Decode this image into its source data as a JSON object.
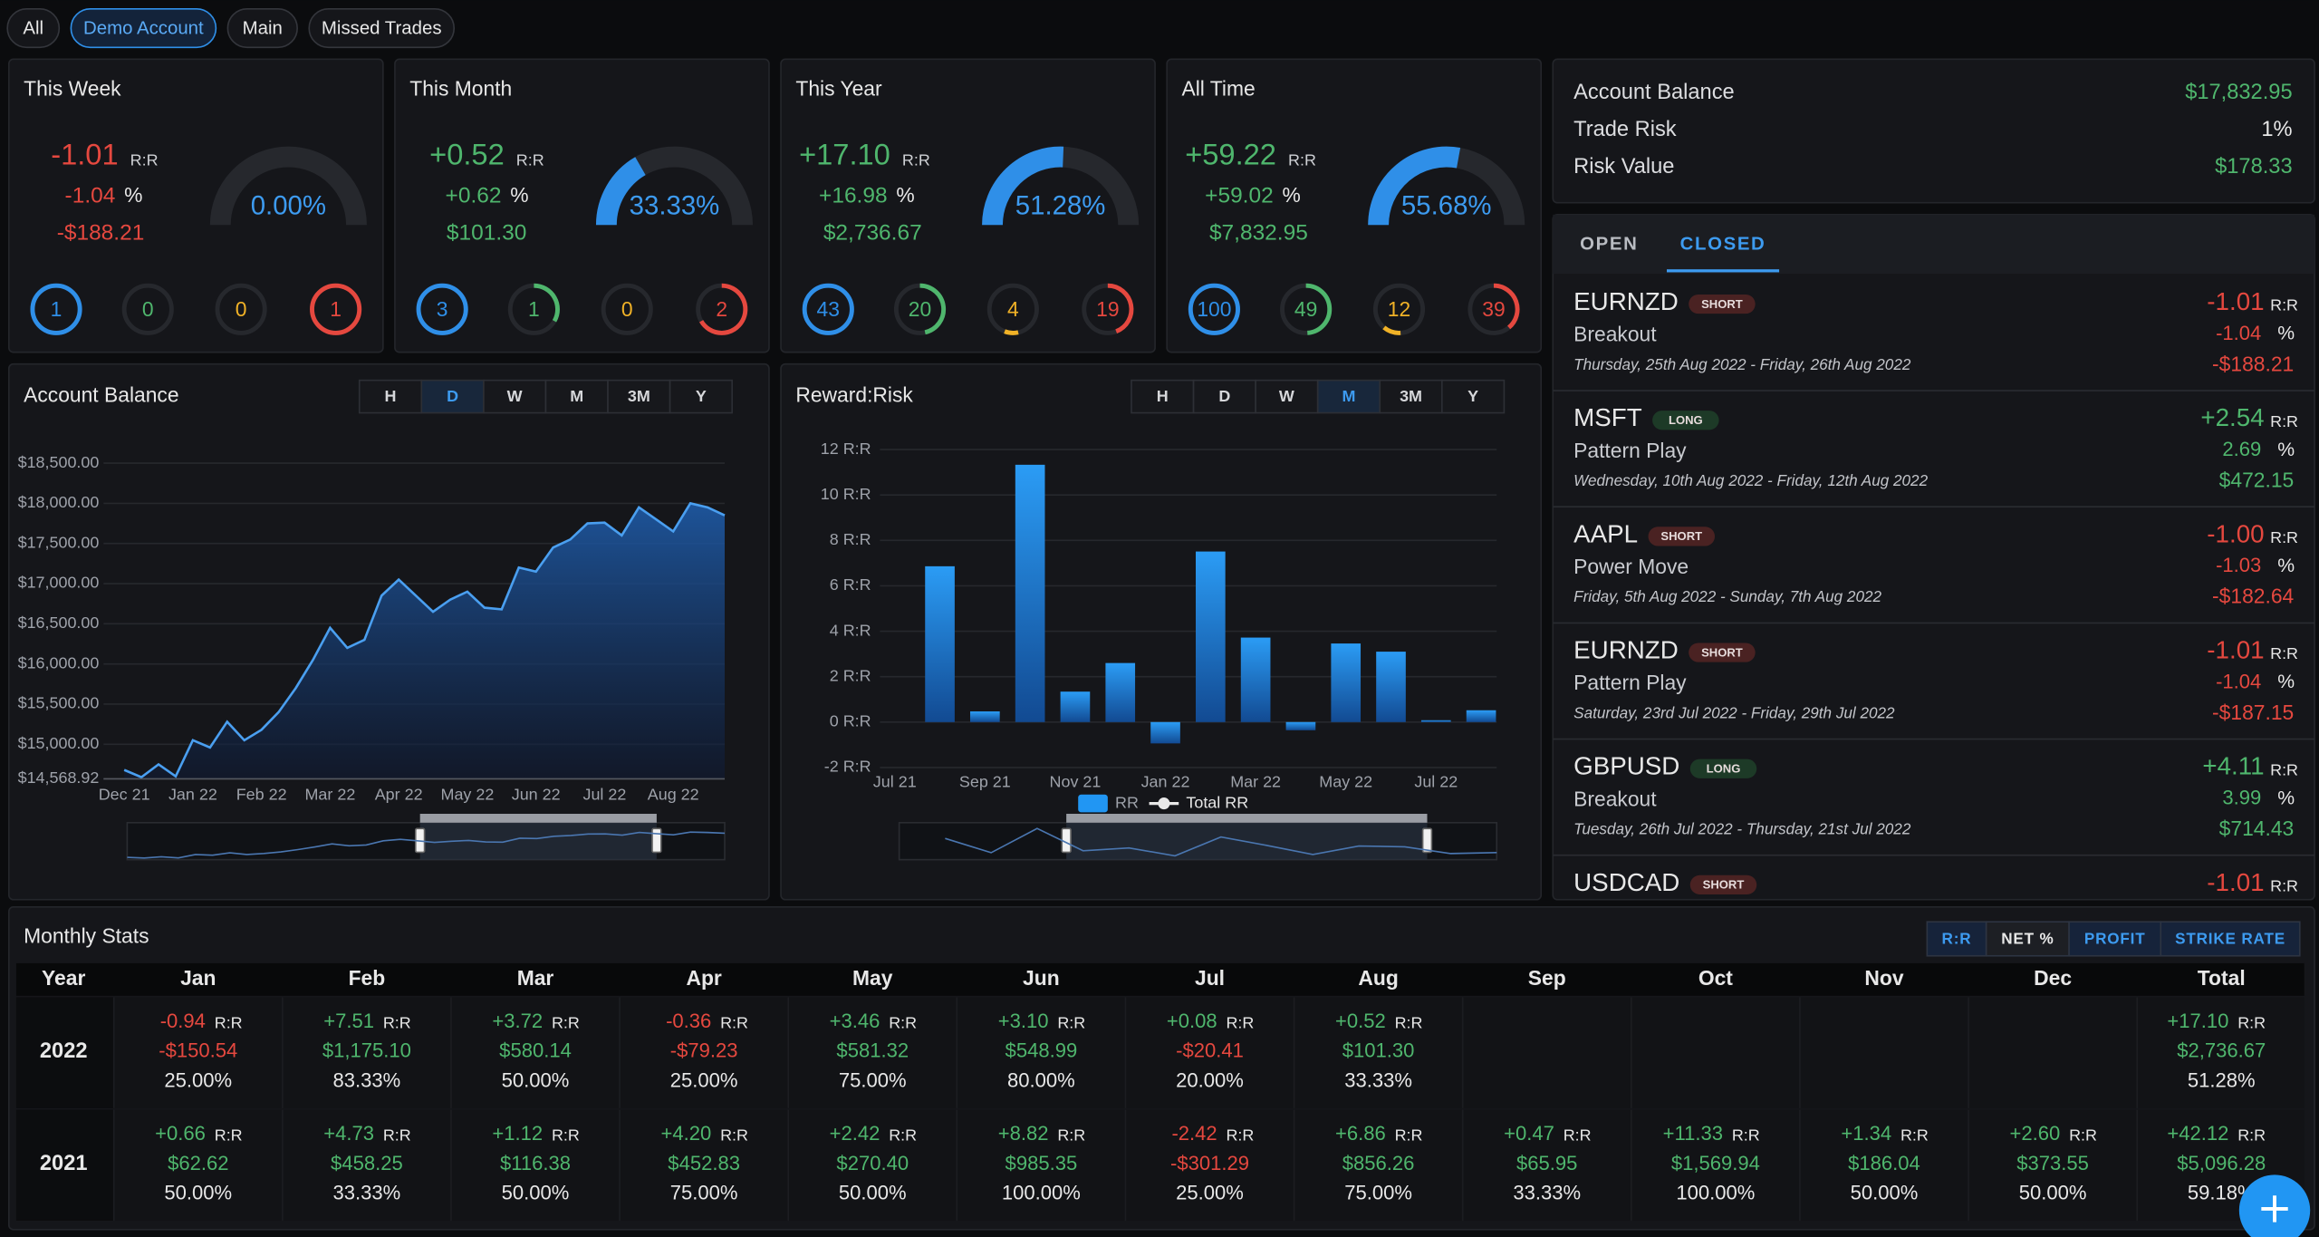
{
  "filters": [
    {
      "label": "All",
      "selected": false
    },
    {
      "label": "Demo Account",
      "selected": true
    },
    {
      "label": "Main",
      "selected": false
    },
    {
      "label": "Missed Trades",
      "selected": false
    }
  ],
  "units": {
    "rr": "R:R",
    "pct": "%"
  },
  "stat_cards": [
    {
      "title": "This Week",
      "rr": "-1.01",
      "pct": "-1.04",
      "profit": "-$188.21",
      "gauge": {
        "value": 0,
        "label": "0.00%"
      },
      "counts": {
        "total": 1,
        "wins": 0,
        "breakeven": 0,
        "losses": 1
      }
    },
    {
      "title": "This Month",
      "rr": "+0.52",
      "pct": "+0.62",
      "profit": "$101.30",
      "gauge": {
        "value": 33.33,
        "label": "33.33%"
      },
      "counts": {
        "total": 3,
        "wins": 1,
        "breakeven": 0,
        "losses": 2
      }
    },
    {
      "title": "This Year",
      "rr": "+17.10",
      "pct": "+16.98",
      "profit": "$2,736.67",
      "gauge": {
        "value": 51.28,
        "label": "51.28%"
      },
      "counts": {
        "total": 43,
        "wins": 20,
        "breakeven": 4,
        "losses": 19
      }
    },
    {
      "title": "All Time",
      "rr": "+59.22",
      "pct": "+59.02",
      "profit": "$7,832.95",
      "gauge": {
        "value": 55.68,
        "label": "55.68%"
      },
      "counts": {
        "total": 100,
        "wins": 49,
        "breakeven": 12,
        "losses": 39
      }
    }
  ],
  "account": [
    {
      "label": "Account Balance",
      "value": "$17,832.95",
      "color": "#4fb66d"
    },
    {
      "label": "Trade Risk",
      "value": "1%",
      "color": "#e8e8e8"
    },
    {
      "label": "Risk Value",
      "value": "$178.33",
      "color": "#4fb66d"
    }
  ],
  "trade_tabs": [
    {
      "label": "OPEN",
      "selected": false
    },
    {
      "label": "CLOSED",
      "selected": true
    }
  ],
  "trades": [
    {
      "symbol": "EURNZD",
      "side": "SHORT",
      "badge_color": "#4a2222",
      "strategy": "Breakout",
      "dates": "Thursday, 25th Aug 2022 - Friday, 26th Aug 2022",
      "rr": "-1.01",
      "pct": "-1.04",
      "profit": "-$188.21"
    },
    {
      "symbol": "MSFT",
      "side": "LONG",
      "badge_color": "#1d3a27",
      "strategy": "Pattern Play",
      "dates": "Wednesday, 10th Aug 2022 - Friday, 12th Aug 2022",
      "rr": "+2.54",
      "pct": "2.69",
      "profit": "$472.15"
    },
    {
      "symbol": "AAPL",
      "side": "SHORT",
      "badge_color": "#4a2222",
      "strategy": "Power Move",
      "dates": "Friday, 5th Aug 2022 - Sunday, 7th Aug 2022",
      "rr": "-1.00",
      "pct": "-1.03",
      "profit": "-$182.64"
    },
    {
      "symbol": "EURNZD",
      "side": "SHORT",
      "badge_color": "#4a2222",
      "strategy": "Pattern Play",
      "dates": "Saturday, 23rd Jul 2022 - Friday, 29th Jul 2022",
      "rr": "-1.01",
      "pct": "-1.04",
      "profit": "-$187.15"
    },
    {
      "symbol": "GBPUSD",
      "side": "LONG",
      "badge_color": "#1d3a27",
      "strategy": "Breakout",
      "dates": "Tuesday, 26th Jul 2022 - Thursday, 21st Jul 2022",
      "rr": "+4.11",
      "pct": "3.99",
      "profit": "$714.43"
    },
    {
      "symbol": "USDCAD",
      "side": "SHORT",
      "badge_color": "#4a2222",
      "rr": "-1.01"
    }
  ],
  "chart_data": [
    {
      "type": "line",
      "title": "Account Balance",
      "color": "#4a9ff0",
      "ranges": [
        {
          "label": "H",
          "selected": false
        },
        {
          "label": "D",
          "selected": true
        },
        {
          "label": "W",
          "selected": false
        },
        {
          "label": "M",
          "selected": false
        },
        {
          "label": "3M",
          "selected": false
        },
        {
          "label": "Y",
          "selected": false
        }
      ],
      "categories": [
        "Dec 21",
        null,
        null,
        null,
        "Jan 22",
        null,
        null,
        null,
        "Feb 22",
        null,
        null,
        null,
        "Mar 22",
        null,
        null,
        null,
        "Apr 22",
        null,
        null,
        null,
        "May 22",
        null,
        null,
        null,
        "Jun 22",
        null,
        null,
        null,
        "Jul 22",
        null,
        null,
        null,
        "Aug 22",
        null,
        null,
        null
      ],
      "values": [
        14680,
        14590,
        14750,
        14600,
        15050,
        14960,
        15280,
        15050,
        15180,
        15400,
        15700,
        16050,
        16450,
        16200,
        16300,
        16850,
        17050,
        16850,
        16650,
        16800,
        16900,
        16700,
        16680,
        17200,
        17150,
        17450,
        17550,
        17750,
        17760,
        17600,
        17950,
        17800,
        17650,
        18000,
        17950,
        17850
      ],
      "ylim": [
        14568.92,
        18850
      ],
      "yticks": [
        {
          "value": 14568.92,
          "label": "$14,568.92"
        },
        {
          "value": 15000,
          "label": "$15,000.00"
        },
        {
          "value": 15500,
          "label": "$15,500.00"
        },
        {
          "value": 16000,
          "label": "$16,000.00"
        },
        {
          "value": 16500,
          "label": "$16,500.00"
        },
        {
          "value": 17000,
          "label": "$17,000.00"
        },
        {
          "value": 17500,
          "label": "$17,500.00"
        },
        {
          "value": 18000,
          "label": "$18,000.00"
        },
        {
          "value": 18500,
          "label": "$18,500.00"
        }
      ],
      "grid": true
    },
    {
      "type": "bar",
      "title": "Reward:Risk",
      "ranges": [
        {
          "label": "H",
          "selected": false
        },
        {
          "label": "D",
          "selected": false
        },
        {
          "label": "W",
          "selected": false
        },
        {
          "label": "M",
          "selected": true
        },
        {
          "label": "3M",
          "selected": false
        },
        {
          "label": "Y",
          "selected": false
        }
      ],
      "categories": [
        "Jul 21",
        null,
        "Sep 21",
        null,
        "Nov 21",
        null,
        "Jan 22",
        null,
        "Mar 22",
        null,
        "May 22",
        null,
        "Jul 22",
        null
      ],
      "series": [
        {
          "name": "RR",
          "color": "#2196f3",
          "values": [
            null,
            6.86,
            0.47,
            11.33,
            1.34,
            2.6,
            -0.94,
            7.51,
            3.72,
            -0.36,
            3.46,
            3.1,
            0.08,
            0.52
          ]
        },
        {
          "name": "Total RR",
          "color": "#e8e8e8",
          "values": [
            null,
            null,
            null,
            null,
            null,
            null,
            null,
            null,
            null,
            null,
            null,
            null,
            null,
            null
          ]
        }
      ],
      "ylim": [
        -2,
        12.6
      ],
      "yticks": [
        {
          "value": -2,
          "label": "-2 R:R"
        },
        {
          "value": 0,
          "label": "0 R:R"
        },
        {
          "value": 2,
          "label": "2 R:R"
        },
        {
          "value": 4,
          "label": "4 R:R"
        },
        {
          "value": 6,
          "label": "6 R:R"
        },
        {
          "value": 8,
          "label": "8 R:R"
        },
        {
          "value": 10,
          "label": "10 R:R"
        },
        {
          "value": 12,
          "label": "12 R:R"
        }
      ],
      "grid": true
    }
  ],
  "monthly_stats": {
    "title": "Monthly Stats",
    "toggles": [
      {
        "label": "R:R",
        "selected": true
      },
      {
        "label": "NET %",
        "selected": false
      },
      {
        "label": "PROFIT",
        "selected": true
      },
      {
        "label": "STRIKE RATE",
        "selected": true
      }
    ],
    "columns": [
      "Year",
      "Jan",
      "Feb",
      "Mar",
      "Apr",
      "May",
      "Jun",
      "Jul",
      "Aug",
      "Sep",
      "Oct",
      "Nov",
      "Dec",
      "Total"
    ],
    "rows": [
      {
        "year": "2022",
        "cells": [
          {
            "rr": "-0.94",
            "profit": "-$150.54",
            "rate": "25.00%"
          },
          {
            "rr": "+7.51",
            "profit": "$1,175.10",
            "rate": "83.33%"
          },
          {
            "rr": "+3.72",
            "profit": "$580.14",
            "rate": "50.00%"
          },
          {
            "rr": "-0.36",
            "profit": "-$79.23",
            "rate": "25.00%"
          },
          {
            "rr": "+3.46",
            "profit": "$581.32",
            "rate": "75.00%"
          },
          {
            "rr": "+3.10",
            "profit": "$548.99",
            "rate": "80.00%"
          },
          {
            "rr": "+0.08",
            "profit": "-$20.41",
            "rate": "20.00%"
          },
          {
            "rr": "+0.52",
            "profit": "$101.30",
            "rate": "33.33%"
          },
          null,
          null,
          null,
          null
        ],
        "total": {
          "rr": "+17.10",
          "profit": "$2,736.67",
          "rate": "51.28%"
        }
      },
      {
        "year": "2021",
        "cells": [
          {
            "rr": "+0.66",
            "profit": "$62.62",
            "rate": "50.00%"
          },
          {
            "rr": "+4.73",
            "profit": "$458.25",
            "rate": "33.33%"
          },
          {
            "rr": "+1.12",
            "profit": "$116.38",
            "rate": "50.00%"
          },
          {
            "rr": "+4.20",
            "profit": "$452.83",
            "rate": "75.00%"
          },
          {
            "rr": "+2.42",
            "profit": "$270.40",
            "rate": "50.00%"
          },
          {
            "rr": "+8.82",
            "profit": "$985.35",
            "rate": "100.00%"
          },
          {
            "rr": "-2.42",
            "profit": "-$301.29",
            "rate": "25.00%"
          },
          {
            "rr": "+6.86",
            "profit": "$856.26",
            "rate": "75.00%"
          },
          {
            "rr": "+0.47",
            "profit": "$65.95",
            "rate": "33.33%"
          },
          {
            "rr": "+11.33",
            "profit": "$1,569.94",
            "rate": "100.00%"
          },
          {
            "rr": "+1.34",
            "profit": "$186.04",
            "rate": "50.00%"
          },
          {
            "rr": "+2.60",
            "profit": "$373.55",
            "rate": "50.00%"
          }
        ],
        "total": {
          "rr": "+42.12",
          "profit": "$5,096.28",
          "rate": "59.18%"
        }
      }
    ]
  }
}
